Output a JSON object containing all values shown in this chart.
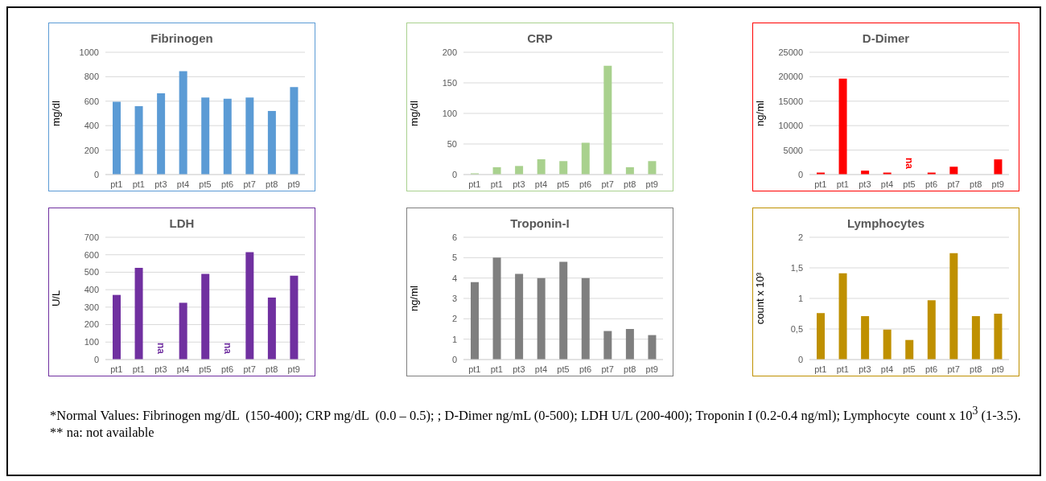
{
  "chart_data": [
    {
      "type": "bar",
      "title": "Fibrinogen",
      "ylabel": "mg/dl",
      "categories": [
        "pt1",
        "pt1",
        "pt3",
        "pt4",
        "pt5",
        "pt6",
        "pt7",
        "pt8",
        "pt9"
      ],
      "values": [
        595,
        560,
        665,
        845,
        630,
        620,
        630,
        520,
        715
      ],
      "color": "#5b9bd5",
      "ylim": [
        0,
        1000
      ],
      "yticks": [
        0,
        200,
        400,
        600,
        800,
        1000
      ],
      "grid": "y",
      "legend": false
    },
    {
      "type": "bar",
      "title": "CRP",
      "ylabel": "mg/dl",
      "categories": [
        "pt1",
        "pt1",
        "pt3",
        "pt4",
        "pt5",
        "pt6",
        "pt7",
        "pt8",
        "pt9"
      ],
      "values": [
        2,
        12,
        14,
        25,
        22,
        52,
        178,
        12,
        22
      ],
      "color": "#a9d18e",
      "ylim": [
        0,
        200
      ],
      "yticks": [
        0,
        50,
        100,
        150,
        200
      ],
      "grid": "y",
      "legend": false
    },
    {
      "type": "bar",
      "title": "D-Dimer",
      "ylabel": "ng/ml",
      "categories": [
        "pt1",
        "pt1",
        "pt3",
        "pt4",
        "pt5",
        "pt6",
        "pt7",
        "pt8",
        "pt9"
      ],
      "values": [
        400,
        19600,
        800,
        400,
        null,
        400,
        1600,
        null,
        3100
      ],
      "color": "#ff0000",
      "ylim": [
        0,
        25000
      ],
      "yticks": [
        0,
        5000,
        10000,
        15000,
        20000,
        25000
      ],
      "grid": "y",
      "legend": false,
      "value_labels": [
        null,
        null,
        null,
        null,
        "na",
        null,
        null,
        null,
        null
      ]
    },
    {
      "type": "bar",
      "title": "LDH",
      "ylabel": "U/L",
      "categories": [
        "pt1",
        "pt1",
        "pt3",
        "pt4",
        "pt5",
        "pt6",
        "pt7",
        "pt8",
        "pt9"
      ],
      "values": [
        370,
        525,
        null,
        325,
        490,
        null,
        615,
        355,
        480
      ],
      "color": "#7030a0",
      "ylim": [
        0,
        700
      ],
      "yticks": [
        0,
        100,
        200,
        300,
        400,
        500,
        600,
        700
      ],
      "grid": "y",
      "legend": false,
      "value_labels": [
        null,
        null,
        "na",
        null,
        null,
        "na",
        null,
        null,
        null
      ]
    },
    {
      "type": "bar",
      "title": "Troponin-I",
      "ylabel": "ng/ml",
      "categories": [
        "pt1",
        "pt1",
        "pt3",
        "pt4",
        "pt5",
        "pt6",
        "pt7",
        "pt8",
        "pt9"
      ],
      "values": [
        3.8,
        5.0,
        4.2,
        4.0,
        4.8,
        4.0,
        1.4,
        1.5,
        1.2
      ],
      "color": "#7f7f7f",
      "ylim": [
        0,
        6
      ],
      "yticks": [
        0,
        1,
        2,
        3,
        4,
        5,
        6
      ],
      "grid": "y",
      "legend": false
    },
    {
      "type": "bar",
      "title": "Lymphocytes",
      "ylabel": "count x 10³",
      "categories": [
        "pt1",
        "pt1",
        "pt3",
        "pt4",
        "pt5",
        "pt6",
        "pt7",
        "pt8",
        "pt9"
      ],
      "values": [
        0.76,
        1.41,
        0.71,
        0.49,
        0.32,
        0.97,
        1.74,
        0.71,
        0.75
      ],
      "color": "#bf9000",
      "ylim": [
        0,
        2
      ],
      "yticks": [
        0,
        {
          "value": 0.5,
          "label": "0,5"
        },
        1,
        {
          "value": 1.5,
          "label": "1,5"
        },
        2
      ],
      "grid": "y",
      "legend": false,
      "annotations": [
        "*Normal Values: Fibrinogen mg/dL  (150-400); CRP mg/dL  (0.0 – 0.5); ; D-Dimer ng/mL (0-500); LDH U/L (200-400); Troponin I (0.2-0.4 ng/ml); Lymphocyte  count x 10$^{3}$ (1-3.5).",
        "** na: not available"
      ]
    }
  ]
}
